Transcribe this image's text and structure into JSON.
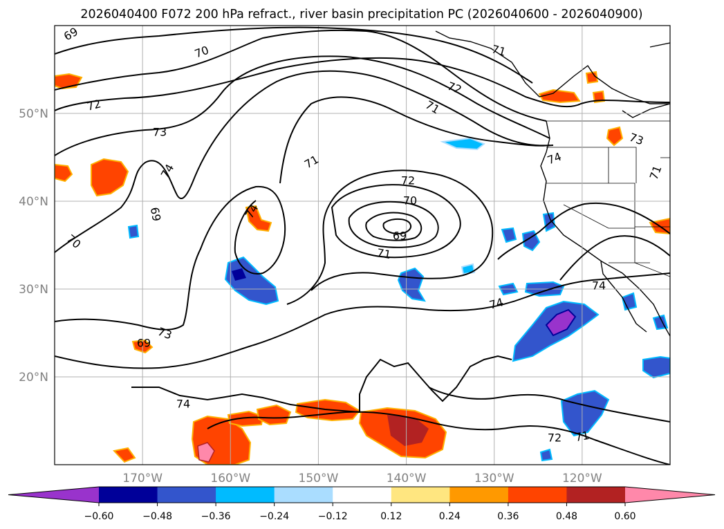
{
  "chart_data": {
    "type": "contour-map",
    "title": "2026040400 F072 200 hPa refract., river basin precipitation PC (2026040600 - 2026040900)",
    "map": {
      "lon_range": [
        -180,
        -110
      ],
      "lat_range": [
        10,
        60
      ],
      "lon_ticks": [
        -170,
        -160,
        -150,
        -140,
        -130,
        -120
      ],
      "lat_ticks": [
        20,
        30,
        40,
        50
      ],
      "lon_tick_labels": [
        "170°W",
        "160°W",
        "150°W",
        "140°W",
        "130°W",
        "120°W"
      ],
      "lat_tick_labels": [
        "20°N",
        "30°N",
        "40°N",
        "50°N"
      ],
      "grid": true,
      "coastlines": true,
      "borders": true
    },
    "contours": {
      "variable": "200 hPa refractivity",
      "line_color": "#000000",
      "levels_labeled": [
        69,
        70,
        71,
        72,
        73,
        74
      ],
      "labels": [
        "69",
        "70",
        "71",
        "72",
        "73",
        "74",
        "69",
        "70",
        "73",
        "71",
        "72",
        "70",
        "69",
        "71",
        "71",
        "72",
        "74",
        "74",
        "74",
        "74",
        "73",
        "71",
        "71",
        "69",
        "74",
        "72"
      ]
    },
    "shading": {
      "variable": "river basin precipitation PC",
      "levels": [
        -0.6,
        -0.48,
        -0.36,
        -0.24,
        -0.12,
        0.12,
        0.24,
        0.36,
        0.48,
        0.6
      ],
      "colorbar_tick_labels": [
        "−0.60",
        "−0.48",
        "−0.36",
        "−0.24",
        "−0.12",
        "0.12",
        "0.24",
        "0.36",
        "0.48",
        "0.60"
      ],
      "colors": [
        "#9933cc",
        "#000099",
        "#3355cc",
        "#00bbff",
        "#aaddff",
        "#ffffff",
        "#ffe680",
        "#ff9900",
        "#ff4400",
        "#b22222",
        "#ff88aa"
      ],
      "extend": "both"
    }
  }
}
